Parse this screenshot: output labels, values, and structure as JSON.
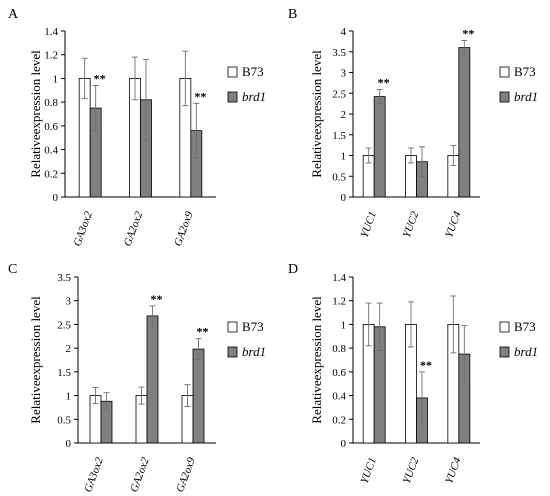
{
  "colors": {
    "b73": "#ffffff",
    "brd1": "#808080",
    "stroke": "#000000",
    "err": "#6e6e6e"
  },
  "chart_data": [
    {
      "panel": "A",
      "type": "bar",
      "ylabel": "Relativeexpression level",
      "categories": [
        "GA3ox2",
        "GA2ox2",
        "GA2ox9"
      ],
      "ylim": [
        0,
        1.4
      ],
      "yticks": [
        0,
        0.2,
        0.4,
        0.6,
        0.8,
        1,
        1.2,
        1.4
      ],
      "ytick_labels": [
        "0",
        "0.2",
        "0.4",
        "0.6",
        "0.8",
        "1",
        "1.2",
        "1.4"
      ],
      "series": [
        {
          "name": "B73",
          "values": [
            1.0,
            1.0,
            1.0
          ],
          "errors": [
            0.17,
            0.18,
            0.23
          ]
        },
        {
          "name": "brd1",
          "values": [
            0.75,
            0.82,
            0.56
          ],
          "errors": [
            0.19,
            0.34,
            0.23
          ]
        }
      ],
      "significance": [
        {
          "series": 1,
          "index": 0,
          "label": "**"
        },
        {
          "series": 1,
          "index": 2,
          "label": "**"
        }
      ]
    },
    {
      "panel": "B",
      "type": "bar",
      "ylabel": "Relativeexpression level",
      "categories": [
        "YUC1",
        "YUC2",
        "YUC4"
      ],
      "ylim": [
        0,
        4
      ],
      "yticks": [
        0,
        0.5,
        1,
        1.5,
        2,
        2.5,
        3,
        3.5,
        4
      ],
      "ytick_labels": [
        "0",
        "0.5",
        "1",
        "1.5",
        "2",
        "2.5",
        "3",
        "3.5",
        "4"
      ],
      "series": [
        {
          "name": "B73",
          "values": [
            1.0,
            1.0,
            1.0
          ],
          "errors": [
            0.18,
            0.18,
            0.24
          ]
        },
        {
          "name": "brd1",
          "values": [
            2.42,
            0.85,
            3.6
          ],
          "errors": [
            0.17,
            0.36,
            0.17
          ]
        }
      ],
      "significance": [
        {
          "series": 1,
          "index": 0,
          "label": "**"
        },
        {
          "series": 1,
          "index": 2,
          "label": "**"
        }
      ]
    },
    {
      "panel": "C",
      "type": "bar",
      "ylabel": "Relativeexpression level",
      "categories": [
        "GA3ox2",
        "GA2ox2",
        "GA2ox9"
      ],
      "ylim": [
        0,
        3.5
      ],
      "yticks": [
        0,
        0.5,
        1,
        1.5,
        2,
        2.5,
        3,
        3.5
      ],
      "ytick_labels": [
        "0",
        "0.5",
        "1",
        "1.5",
        "2",
        "2.5",
        "3",
        "3.5"
      ],
      "series": [
        {
          "name": "B73",
          "values": [
            1.0,
            1.0,
            1.0
          ],
          "errors": [
            0.17,
            0.18,
            0.23
          ]
        },
        {
          "name": "brd1",
          "values": [
            0.88,
            2.68,
            1.98
          ],
          "errors": [
            0.18,
            0.21,
            0.22
          ]
        }
      ],
      "significance": [
        {
          "series": 1,
          "index": 1,
          "label": "**"
        },
        {
          "series": 1,
          "index": 2,
          "label": "**"
        }
      ]
    },
    {
      "panel": "D",
      "type": "bar",
      "ylabel": "Relativeexpression level",
      "categories": [
        "YUC1",
        "YUC2",
        "YUC4"
      ],
      "ylim": [
        0,
        1.4
      ],
      "yticks": [
        0,
        0.2,
        0.4,
        0.6,
        0.8,
        1,
        1.2,
        1.4
      ],
      "ytick_labels": [
        "0",
        "0.2",
        "0.4",
        "0.6",
        "0.8",
        "1",
        "1.2",
        "1.4"
      ],
      "series": [
        {
          "name": "B73",
          "values": [
            1.0,
            1.0,
            1.0
          ],
          "errors": [
            0.18,
            0.19,
            0.24
          ]
        },
        {
          "name": "brd1",
          "values": [
            0.98,
            0.38,
            0.75
          ],
          "errors": [
            0.2,
            0.22,
            0.24
          ]
        }
      ],
      "significance": [
        {
          "series": 1,
          "index": 1,
          "label": "**"
        }
      ]
    }
  ]
}
